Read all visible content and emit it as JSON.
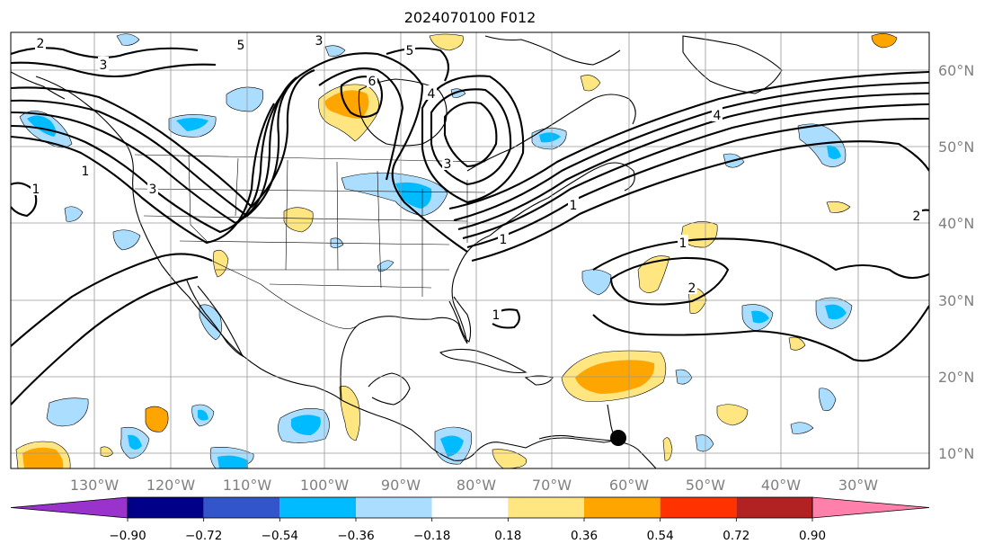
{
  "title": "2024070100 F012",
  "lon_labels": [
    "130°W",
    "120°W",
    "110°W",
    "100°W",
    "90°W",
    "80°W",
    "70°W",
    "60°W",
    "50°W",
    "40°W",
    "30°W"
  ],
  "lat_labels": [
    "60°N",
    "50°N",
    "40°N",
    "30°N",
    "20°N",
    "10°N"
  ],
  "colorbar": {
    "tick_labels": [
      "−0.90",
      "−0.72",
      "−0.54",
      "−0.36",
      "−0.18",
      "0.18",
      "0.36",
      "0.54",
      "0.72",
      "0.90"
    ],
    "colors": [
      "#9933cc",
      "#000088",
      "#3355cc",
      "#00bbff",
      "#aaddff",
      "#ffffff",
      "#ffe680",
      "#ffa500",
      "#ff3300",
      "#b22222",
      "#ff80aa"
    ],
    "extend": "both"
  },
  "contour_labels": [
    "2",
    "3",
    "5",
    "3",
    "6",
    "5",
    "4",
    "3",
    "1",
    "1",
    "3",
    "1",
    "2",
    "4",
    "1",
    "1",
    "2",
    "1"
  ],
  "shading_colors": {
    "neg_light": "#aaddff",
    "neg_mid": "#00bbff",
    "pos_light": "#ffe680",
    "pos_mid": "#ffa500"
  },
  "marker": "black-dot-icon"
}
